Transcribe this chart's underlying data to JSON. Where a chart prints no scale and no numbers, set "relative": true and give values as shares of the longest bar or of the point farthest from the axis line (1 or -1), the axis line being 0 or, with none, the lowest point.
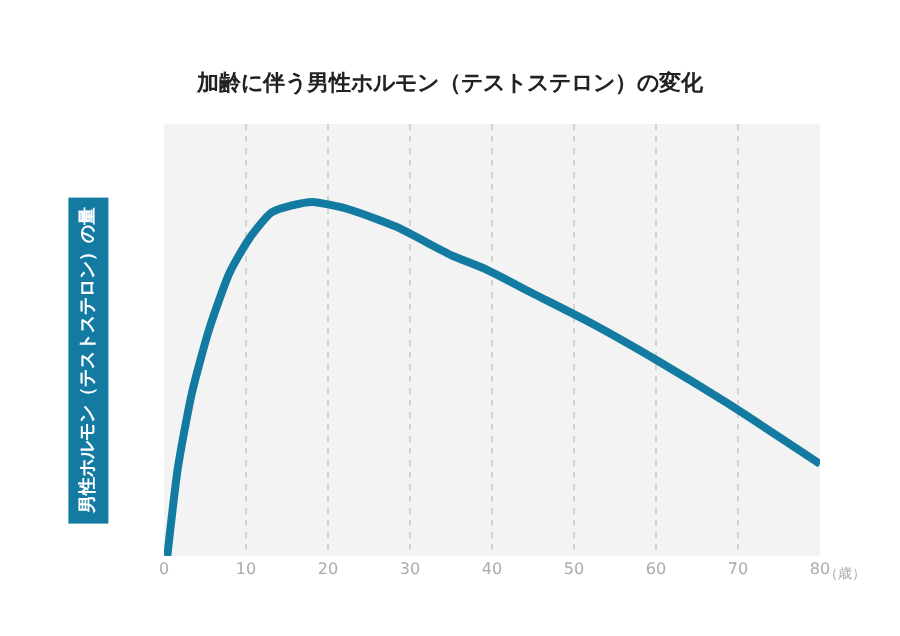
{
  "chart_data": {
    "type": "line",
    "title": "加齢に伴う男性ホルモン（テストステロン）の変化",
    "ylabel": "男性ホルモン（テストステロン）の量",
    "xlabel": "（歳）",
    "relative": true,
    "x": [
      0.4,
      1.7,
      3.4,
      5.5,
      8.0,
      10.5,
      13.1,
      15.6,
      18.1,
      22.4,
      28.3,
      35,
      39.2,
      45.1,
      51.9,
      60.3,
      68.8,
      80
    ],
    "series": [
      {
        "color": "#137ba1",
        "values": [
          0,
          0.25,
          0.46,
          0.64,
          0.8,
          0.9,
          0.97,
          0.99,
          1.0,
          0.98,
          0.93,
          0.85,
          0.81,
          0.74,
          0.66,
          0.55,
          0.43,
          0.26
        ]
      }
    ],
    "xlim": [
      0,
      80
    ],
    "xticks": [
      0,
      10,
      20,
      30,
      40,
      50,
      60,
      70,
      80
    ],
    "grid": "x",
    "marker": "none",
    "line_style": "solid"
  }
}
